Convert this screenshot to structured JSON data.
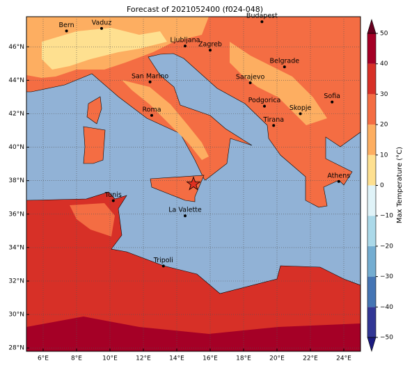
{
  "title": "Forecast of 2021052400 (f024-048)",
  "map": {
    "lonlim": [
      5,
      25
    ],
    "latlim": [
      27.8,
      47.8
    ],
    "lonticks": [
      {
        "value": 6,
        "label": "6°E"
      },
      {
        "value": 8,
        "label": "8°E"
      },
      {
        "value": 10,
        "label": "10°E"
      },
      {
        "value": 12,
        "label": "12°E"
      },
      {
        "value": 14,
        "label": "14°E"
      },
      {
        "value": 16,
        "label": "16°E"
      },
      {
        "value": 18,
        "label": "18°E"
      },
      {
        "value": 20,
        "label": "20°E"
      },
      {
        "value": 22,
        "label": "22°E"
      },
      {
        "value": 24,
        "label": "24°E"
      }
    ],
    "latticks": [
      {
        "value": 28,
        "label": "28°N"
      },
      {
        "value": 30,
        "label": "30°N"
      },
      {
        "value": 32,
        "label": "32°N"
      },
      {
        "value": 34,
        "label": "34°N"
      },
      {
        "value": 36,
        "label": "36°N"
      },
      {
        "value": 38,
        "label": "38°N"
      },
      {
        "value": 40,
        "label": "40°N"
      },
      {
        "value": 42,
        "label": "42°N"
      },
      {
        "value": 44,
        "label": "44°N"
      },
      {
        "value": 46,
        "label": "46°N"
      }
    ],
    "grid": true,
    "cities": [
      {
        "name": "Bern",
        "lon": 7.4,
        "lat": 46.95
      },
      {
        "name": "Vaduz",
        "lon": 9.5,
        "lat": 47.1
      },
      {
        "name": "Budapest",
        "lon": 19.1,
        "lat": 47.5
      },
      {
        "name": "Ljubljana",
        "lon": 14.5,
        "lat": 46.05
      },
      {
        "name": "Zagreb",
        "lon": 16.0,
        "lat": 45.8
      },
      {
        "name": "Belgrade",
        "lon": 20.45,
        "lat": 44.8
      },
      {
        "name": "San Marino",
        "lon": 12.4,
        "lat": 43.9
      },
      {
        "name": "Sarajevo",
        "lon": 18.4,
        "lat": 43.85
      },
      {
        "name": "Sofia",
        "lon": 23.3,
        "lat": 42.7
      },
      {
        "name": "Podgorica",
        "lon": 19.25,
        "lat": 42.45
      },
      {
        "name": "Skopje",
        "lon": 21.4,
        "lat": 42.0
      },
      {
        "name": "Roma",
        "lon": 12.5,
        "lat": 41.9
      },
      {
        "name": "Tirana",
        "lon": 19.8,
        "lat": 41.3
      },
      {
        "name": "Athens",
        "lon": 23.7,
        "lat": 37.95
      },
      {
        "name": "Tunis",
        "lon": 10.2,
        "lat": 36.8
      },
      {
        "name": "La Valette",
        "lon": 14.5,
        "lat": 35.9
      },
      {
        "name": "Tripoli",
        "lon": 13.2,
        "lat": 32.9
      }
    ],
    "star": {
      "lon": 15.0,
      "lat": 37.8,
      "color": "#e03020"
    }
  },
  "colorbar": {
    "label": "Max Temperature (°C)",
    "ticks": [
      {
        "value": -50,
        "label": "−50"
      },
      {
        "value": -40,
        "label": "−40"
      },
      {
        "value": -30,
        "label": "−30"
      },
      {
        "value": -20,
        "label": "−20"
      },
      {
        "value": -10,
        "label": "−10"
      },
      0,
      10,
      20,
      30,
      40,
      50
    ],
    "colors": [
      "#313695",
      "#4575b4",
      "#74add1",
      "#abd9e9",
      "#e0f3f8",
      "#fee090",
      "#fdae61",
      "#f46d43",
      "#d73027",
      "#a50026"
    ],
    "under": "#1a1a80",
    "over": "#67001f"
  }
}
